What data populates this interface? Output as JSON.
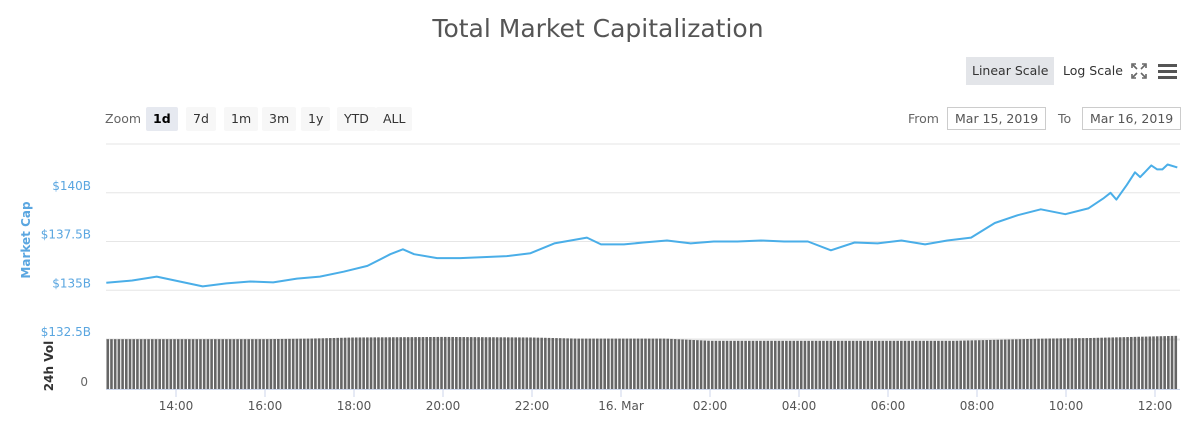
{
  "header": {
    "title": "Total Market Capitalization"
  },
  "toolbar": {
    "linear_scale": "Linear Scale",
    "log_scale": "Log Scale",
    "fullscreen_icon": "fullscreen-icon",
    "menu_icon": "hamburger-menu-icon"
  },
  "zoom": {
    "label": "Zoom",
    "options": [
      "1d",
      "7d",
      "1m",
      "3m",
      "1y",
      "YTD",
      "ALL"
    ],
    "selected": "1d"
  },
  "range": {
    "from_label": "From",
    "from_value": "Mar 15, 2019",
    "to_label": "To",
    "to_value": "Mar 16, 2019"
  },
  "colors": {
    "line": "#4aaee8",
    "axis_label": "#5aa6e0",
    "volume": "#666666",
    "grid": "#e6e6e6"
  },
  "chart_data": {
    "type": "line",
    "ylabel": "Market Cap",
    "y_ticks": [
      "$132.5B",
      "$135B",
      "$137.5B",
      "$140B"
    ],
    "ylim": [
      132.5,
      142.5
    ],
    "grid": true,
    "x_ticks": [
      "14:00",
      "16:00",
      "18:00",
      "20:00",
      "22:00",
      "16. Mar",
      "02:00",
      "04:00",
      "06:00",
      "08:00",
      "10:00",
      "12:00"
    ],
    "series": [
      {
        "values": [
          [
            "03-15 12:26",
            135.38
          ],
          [
            "03-15 13:01",
            135.5
          ],
          [
            "03-15 13:34",
            135.7
          ],
          [
            "03-15 14:05",
            135.45
          ],
          [
            "03-15 14:36",
            135.2
          ],
          [
            "03-15 15:08",
            135.35
          ],
          [
            "03-15 15:40",
            135.45
          ],
          [
            "03-15 16:11",
            135.4
          ],
          [
            "03-15 16:43",
            135.6
          ],
          [
            "03-15 17:14",
            135.7
          ],
          [
            "03-15 17:46",
            135.95
          ],
          [
            "03-15 18:18",
            136.25
          ],
          [
            "03-15 18:49",
            136.85
          ],
          [
            "03-15 19:06",
            137.1
          ],
          [
            "03-15 19:21",
            136.85
          ],
          [
            "03-15 19:52",
            136.65
          ],
          [
            "03-15 20:23",
            136.65
          ],
          [
            "03-15 20:55",
            136.7
          ],
          [
            "03-15 21:26",
            136.75
          ],
          [
            "03-15 21:58",
            136.9
          ],
          [
            "03-15 22:30",
            137.4
          ],
          [
            "03-15 23:14",
            137.7
          ],
          [
            "03-15 23:33",
            137.35
          ],
          [
            "03-16 00:04",
            137.35
          ],
          [
            "03-16 00:30",
            137.45
          ],
          [
            "03-16 01:02",
            137.55
          ],
          [
            "03-16 01:34",
            137.4
          ],
          [
            "03-16 02:05",
            137.5
          ],
          [
            "03-16 02:37",
            137.5
          ],
          [
            "03-16 03:09",
            137.55
          ],
          [
            "03-16 03:40",
            137.5
          ],
          [
            "03-16 04:12",
            137.5
          ],
          [
            "03-16 04:43",
            137.05
          ],
          [
            "03-16 05:15",
            137.45
          ],
          [
            "03-16 05:46",
            137.4
          ],
          [
            "03-16 06:18",
            137.55
          ],
          [
            "03-16 06:50",
            137.35
          ],
          [
            "03-16 07:20",
            137.55
          ],
          [
            "03-16 07:52",
            137.7
          ],
          [
            "03-16 08:24",
            138.45
          ],
          [
            "03-16 08:55",
            138.85
          ],
          [
            "03-16 09:26",
            139.15
          ],
          [
            "03-16 09:59",
            138.9
          ],
          [
            "03-16 10:30",
            139.2
          ],
          [
            "03-16 10:50",
            139.7
          ],
          [
            "03-16 11:00",
            140.0
          ],
          [
            "03-16 11:08",
            139.65
          ],
          [
            "03-16 11:22",
            140.4
          ],
          [
            "03-16 11:33",
            141.05
          ],
          [
            "03-16 11:40",
            140.8
          ],
          [
            "03-16 11:55",
            141.4
          ],
          [
            "03-16 12:03",
            141.2
          ],
          [
            "03-16 12:10",
            141.2
          ],
          [
            "03-16 12:17",
            141.45
          ],
          [
            "03-16 12:30",
            141.3
          ]
        ]
      }
    ],
    "volume": {
      "label": "24h Vol",
      "zero_tick": "0",
      "level_of_panel": [
        [
          "03-15 12:30",
          0.89
        ],
        [
          "03-15 14:00",
          0.89
        ],
        [
          "03-15 16:00",
          0.89
        ],
        [
          "03-15 17:00",
          0.9
        ],
        [
          "03-15 18:00",
          0.92
        ],
        [
          "03-15 20:00",
          0.93
        ],
        [
          "03-15 22:00",
          0.92
        ],
        [
          "03-15 23:00",
          0.9
        ],
        [
          "03-16 01:00",
          0.9
        ],
        [
          "03-16 02:00",
          0.86
        ],
        [
          "03-16 04:00",
          0.86
        ],
        [
          "03-16 06:00",
          0.86
        ],
        [
          "03-16 07:30",
          0.86
        ],
        [
          "03-16 08:30",
          0.88
        ],
        [
          "03-16 09:30",
          0.9
        ],
        [
          "03-16 10:30",
          0.91
        ],
        [
          "03-16 11:30",
          0.93
        ],
        [
          "03-16 12:30",
          0.95
        ]
      ]
    }
  }
}
